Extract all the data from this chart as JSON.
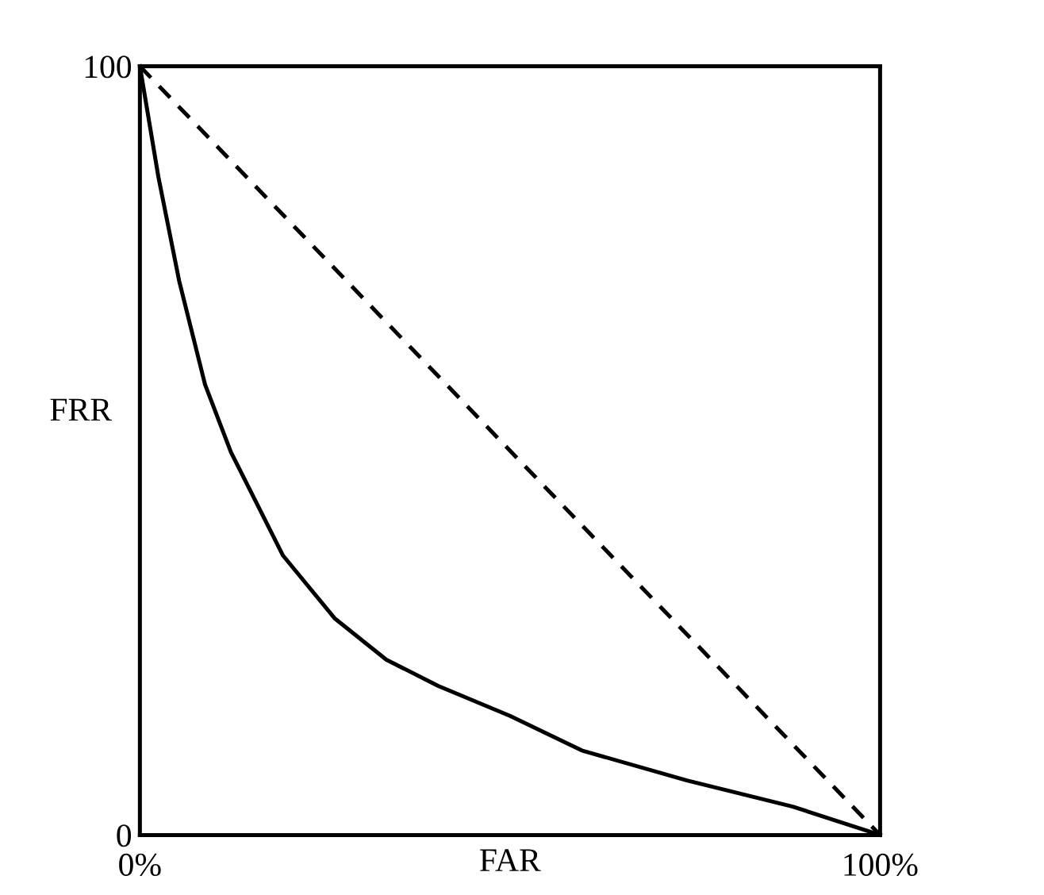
{
  "chart_data": {
    "type": "line",
    "xlabel": "FAR",
    "ylabel": "FRR",
    "xlim": [
      0,
      100
    ],
    "ylim": [
      0,
      100
    ],
    "xticks": [
      {
        "value": 0,
        "label": "0%"
      },
      {
        "value": 100,
        "label": "100%"
      }
    ],
    "yticks": [
      0,
      100
    ],
    "legend": false,
    "marker": "none",
    "series": [
      {
        "color": "#000000",
        "line_style": "solid",
        "x": [
          0,
          2.5,
          5.3,
          8.8,
          12.3,
          19.3,
          26.3,
          33.3,
          40.3,
          50,
          59.7,
          73.9,
          88.2,
          100
        ],
        "values": [
          100,
          85.6,
          72.1,
          58.6,
          49.8,
          36.4,
          28.2,
          22.8,
          19.4,
          15.5,
          11,
          7.1,
          3.7,
          0
        ]
      },
      {
        "color": "#000000",
        "line_style": "dashed",
        "x": [
          0,
          100
        ],
        "values": [
          100,
          0
        ]
      }
    ]
  }
}
